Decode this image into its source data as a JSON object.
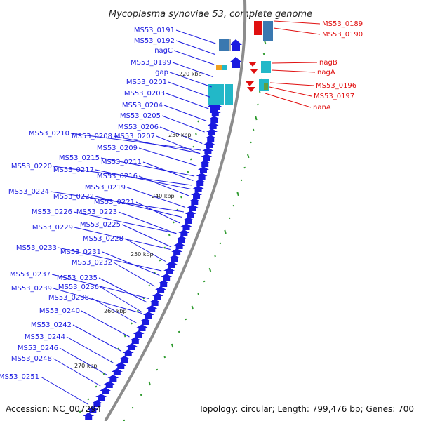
{
  "title": "Mycoplasma synoviae 53, complete genome",
  "accession": "Accession: NC_007294",
  "summary": "Topology: circular; Length: 799,476 bp; Genes: 700",
  "colors": {
    "backbone": "#8c8c8c",
    "forward_gene": "#1a1ae0",
    "reverse_gene": "#e01010",
    "gc_marker": "#2e9a2e",
    "label_blue": "#1a1ae0",
    "label_red": "#e01010",
    "cyan_feature": "#22b8c8",
    "orange_feature": "#f0a020",
    "green_feature": "#60a040"
  },
  "scale_ticks": [
    "220 kbp",
    "230 kbp",
    "240 kbp",
    "250 kbp",
    "260 kbp",
    "270 kbp"
  ],
  "left_labels": [
    "MS53_0191",
    "MS53_0192",
    "nagC",
    "MS53_0199",
    "gap",
    "MS53_0201",
    "MS53_0203",
    "MS53_0204",
    "MS53_0205",
    "MS53_0206",
    "MS53_0210",
    "MS53_0208",
    "MS53_0207",
    "MS53_0209",
    "MS53_0215",
    "MS53_0211",
    "MS53_0220",
    "MS53_0217",
    "MS53_0216",
    "MS53_0219",
    "MS53_0224",
    "MS53_0222",
    "MS53_0221",
    "MS53_0226",
    "MS53_0223",
    "MS53_0229",
    "MS53_0225",
    "MS53_0228",
    "MS53_0233",
    "MS53_0231",
    "MS53_0232",
    "MS53_0237",
    "MS53_0235",
    "MS53_0239",
    "MS53_0236",
    "MS53_0238",
    "MS53_0240",
    "MS53_0242",
    "MS53_0244",
    "MS53_0246",
    "MS53_0248",
    "MS53_0251"
  ],
  "right_labels": [
    "MS53_0189",
    "MS53_0190",
    "nagB",
    "nagA",
    "MS53_0196",
    "MS53_0197",
    "nanA"
  ]
}
